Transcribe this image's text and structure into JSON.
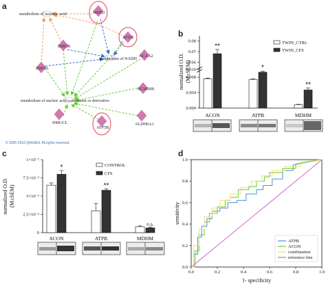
{
  "panels": {
    "a": {
      "letter": "a",
      "copyright": "© 2000-2016 QIAGEN. All rights reserved.",
      "nodes": {
        "mdh2": "MDH2",
        "aco2": "ACO2",
        "idh3b": "IDH3B",
        "idh3a": "IDH3A",
        "acaa2": "ACAA2",
        "acadsb": "ACADSB",
        "hmgcl": "HMGCL",
        "atp5b": "ATP5B",
        "aldh6a1": "ALDH6A1"
      },
      "processes": {
        "isocitric": "metabolism of isocitric acid",
        "nadh": "metabolism of NADH",
        "nucleic": "metabolism of nucleic acid component or derivative"
      },
      "colors": {
        "node_fill": "#d27ab0",
        "highlight_ring": "#e0405a",
        "orange_edge": "#f0a060",
        "blue_edge": "#2c6fc8",
        "green_edge": "#66cc33"
      }
    },
    "b": {
      "letter": "b",
      "chart_data": {
        "type": "bar",
        "categories": [
          "ACON",
          "ATPB",
          "MDHM"
        ],
        "series": [
          {
            "name": "TWIN_CTRL",
            "values": [
              0.0076,
              0.0074,
              0.0009
            ],
            "errors": [
              0.0002,
              0.0002,
              0.0001
            ]
          },
          {
            "name": "TWIN_CFS",
            "values": [
              0.068,
              0.0093,
              0.0047
            ],
            "errors": [
              0.004,
              0.0003,
              0.0005
            ]
          }
        ],
        "ylabel": "normalized O.D.\n(M±SEM)",
        "yticks_lower": [
          "0.000",
          "0.004",
          "0.008"
        ],
        "yticks_upper": [
          "0.010",
          "0.08",
          "0.07",
          "0.06"
        ],
        "significance": [
          "**",
          "*",
          "**"
        ],
        "legend_position": "top-right"
      }
    },
    "c": {
      "letter": "c",
      "chart_data": {
        "type": "bar",
        "categories": [
          "ACON",
          "ATPB",
          "MDHM"
        ],
        "series": [
          {
            "name": "CONTROL",
            "values": [
              6.5,
              3.0,
              0.8
            ],
            "errors": [
              0.3,
              1.0,
              0.15
            ]
          },
          {
            "name": "CFS",
            "values": [
              8.0,
              5.8,
              0.65
            ],
            "errors": [
              0.5,
              0.2,
              0.1
            ]
          }
        ],
        "ylabel": "normalized O.D.\n(M±SEM)",
        "yticks": [
          "0",
          "2.5×10⁻³",
          "5×10⁻³",
          "7.5×10⁻³",
          "1×10⁻²"
        ],
        "ylim": [
          0,
          10
        ],
        "significance": [
          "*",
          "**",
          "n.s."
        ],
        "legend_position": "top-right"
      }
    },
    "d": {
      "letter": "d",
      "chart_data": {
        "type": "line",
        "xlabel": "1- specificity",
        "ylabel": "sensitivity",
        "xticks": [
          "0.0",
          "0.2",
          "0.4",
          "0.6",
          "0.8",
          "1.0"
        ],
        "yticks": [
          "0.0",
          "0.2",
          "0.4",
          "0.6",
          "0.8",
          "1.0"
        ],
        "xlim": [
          0,
          1
        ],
        "ylim": [
          0,
          1
        ],
        "legend_position": "bottom-right",
        "series": [
          {
            "name": "ATPB",
            "color": "#4a90d9",
            "x": [
              0,
              0.02,
              0.02,
              0.05,
              0.05,
              0.08,
              0.08,
              0.12,
              0.12,
              0.16,
              0.16,
              0.22,
              0.22,
              0.28,
              0.28,
              0.35,
              0.35,
              0.42,
              0.42,
              0.5,
              0.5,
              0.55,
              0.55,
              0.62,
              0.62,
              0.7,
              0.7,
              0.78,
              0.78,
              0.9,
              1.0
            ],
            "y": [
              0,
              0,
              0.12,
              0.12,
              0.28,
              0.28,
              0.38,
              0.38,
              0.45,
              0.45,
              0.52,
              0.52,
              0.55,
              0.55,
              0.6,
              0.6,
              0.62,
              0.62,
              0.68,
              0.68,
              0.72,
              0.72,
              0.76,
              0.76,
              0.82,
              0.82,
              0.9,
              0.9,
              0.95,
              0.98,
              1.0
            ]
          },
          {
            "name": "ACON",
            "color": "#66cc33",
            "x": [
              0,
              0.03,
              0.03,
              0.06,
              0.06,
              0.1,
              0.1,
              0.14,
              0.14,
              0.2,
              0.2,
              0.26,
              0.26,
              0.3,
              0.3,
              0.36,
              0.36,
              0.44,
              0.44,
              0.5,
              0.5,
              0.56,
              0.56,
              0.6,
              0.6,
              0.7,
              0.7,
              0.8,
              0.8,
              1.0
            ],
            "y": [
              0,
              0,
              0.15,
              0.15,
              0.3,
              0.3,
              0.42,
              0.42,
              0.5,
              0.5,
              0.56,
              0.56,
              0.62,
              0.62,
              0.65,
              0.65,
              0.72,
              0.72,
              0.75,
              0.75,
              0.8,
              0.8,
              0.84,
              0.84,
              0.88,
              0.88,
              0.92,
              0.92,
              0.96,
              1.0
            ]
          },
          {
            "name": "combination",
            "color": "#f0e070",
            "x": [
              0,
              0.02,
              0.02,
              0.06,
              0.06,
              0.1,
              0.1,
              0.16,
              0.16,
              0.22,
              0.22,
              0.3,
              0.3,
              0.38,
              0.38,
              0.46,
              0.46,
              0.54,
              0.54,
              0.62,
              0.62,
              0.72,
              0.72,
              0.84,
              0.84,
              1.0
            ],
            "y": [
              0,
              0,
              0.2,
              0.2,
              0.35,
              0.35,
              0.47,
              0.47,
              0.55,
              0.55,
              0.62,
              0.62,
              0.68,
              0.68,
              0.74,
              0.74,
              0.8,
              0.8,
              0.85,
              0.85,
              0.9,
              0.9,
              0.94,
              0.94,
              0.98,
              1.0
            ]
          },
          {
            "name": "reference line",
            "color": "#cc66cc",
            "x": [
              0,
              1
            ],
            "y": [
              0,
              1
            ]
          }
        ]
      }
    }
  }
}
